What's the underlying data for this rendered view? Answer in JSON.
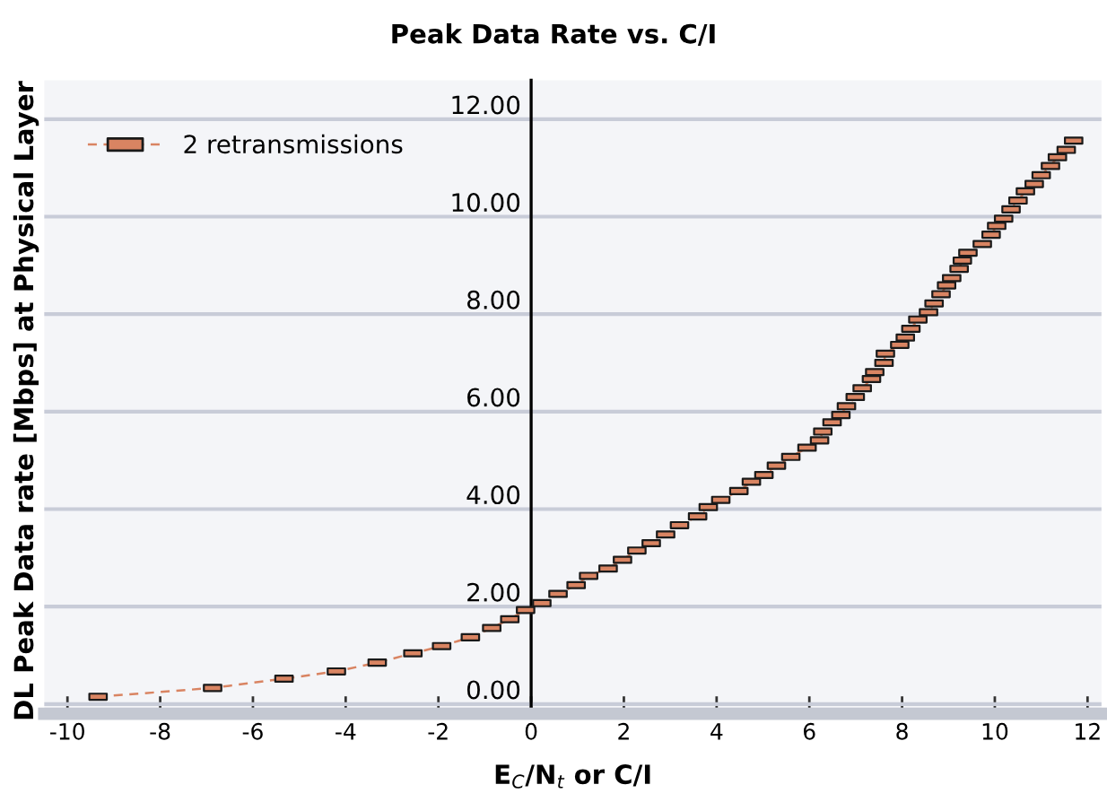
{
  "chart_data": {
    "type": "line",
    "title": "Peak Data Rate vs. C/I",
    "xlabel": "E$_{C}$/N$_{t}$ or C/I",
    "ylabel": "DL Peak Data rate [Mbps] at Physical Layer",
    "xlim": [
      -10.5,
      12.3
    ],
    "ylim": [
      -0.2,
      12.8
    ],
    "xticks": [
      -10,
      -8,
      -6,
      -4,
      -2,
      0,
      2,
      4,
      6,
      8,
      10,
      12
    ],
    "yticks": [
      {
        "value": 0,
        "label": "0.00"
      },
      {
        "value": 2,
        "label": "2.00"
      },
      {
        "value": 4,
        "label": "4.00"
      },
      {
        "value": 6,
        "label": "6.00"
      },
      {
        "value": 8,
        "label": "8.00"
      },
      {
        "value": 10,
        "label": "10.00"
      },
      {
        "value": 12,
        "label": "12.00"
      }
    ],
    "grid": "y",
    "legend": "top left",
    "marker": "square",
    "line_style": "dashed",
    "series": [
      {
        "name": "2 retransmissions",
        "color": "#d98462",
        "x": [
          -9.34,
          -6.87,
          -5.33,
          -4.2,
          -3.32,
          -2.55,
          -1.93,
          -1.31,
          -0.85,
          -0.46,
          -0.12,
          0.23,
          0.58,
          0.97,
          1.24,
          1.66,
          1.97,
          2.28,
          2.59,
          2.9,
          3.2,
          3.59,
          3.82,
          4.09,
          4.48,
          4.75,
          5.02,
          5.29,
          5.6,
          5.95,
          6.22,
          6.29,
          6.49,
          6.68,
          6.8,
          6.99,
          7.14,
          7.34,
          7.41,
          7.61,
          7.64,
          7.95,
          8.07,
          8.19,
          8.34,
          8.57,
          8.69,
          8.84,
          8.96,
          9.07,
          9.23,
          9.3,
          9.42,
          9.73,
          9.92,
          10.04,
          10.19,
          10.35,
          10.5,
          10.66,
          10.85,
          11.0,
          11.2,
          11.35,
          11.54,
          11.7
        ],
        "values": [
          0.15,
          0.33,
          0.52,
          0.67,
          0.85,
          1.04,
          1.19,
          1.37,
          1.56,
          1.74,
          1.93,
          2.07,
          2.26,
          2.44,
          2.63,
          2.78,
          2.96,
          3.15,
          3.3,
          3.48,
          3.67,
          3.85,
          4.04,
          4.19,
          4.37,
          4.56,
          4.7,
          4.89,
          5.07,
          5.26,
          5.41,
          5.59,
          5.78,
          5.93,
          6.11,
          6.3,
          6.48,
          6.67,
          6.81,
          7.0,
          7.19,
          7.37,
          7.52,
          7.7,
          7.89,
          8.04,
          8.22,
          8.41,
          8.59,
          8.74,
          8.93,
          9.1,
          9.26,
          9.44,
          9.63,
          9.81,
          9.96,
          10.15,
          10.33,
          10.52,
          10.67,
          10.85,
          11.04,
          11.22,
          11.37,
          11.56
        ]
      }
    ]
  }
}
